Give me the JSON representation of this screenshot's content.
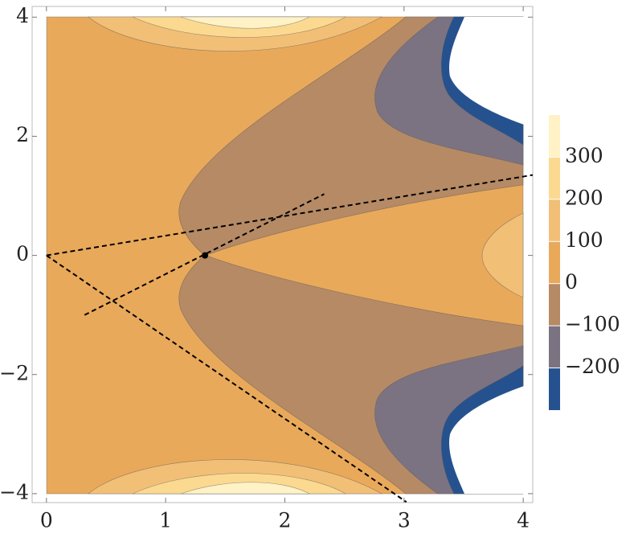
{
  "chart_data": {
    "type": "contour",
    "xlim": [
      -0.12,
      4.08
    ],
    "ylim": [
      -4.15,
      4.18
    ],
    "xticks": [
      0,
      1,
      2,
      3,
      4
    ],
    "yticks": [
      {
        "value": -4,
        "label": "−4"
      },
      {
        "value": -2,
        "label": "−2"
      },
      0,
      2,
      4
    ],
    "colorbar": {
      "lim": [
        -300,
        400
      ],
      "ticks": [
        {
          "value": -200,
          "label": "−200"
        },
        {
          "value": -100,
          "label": "−100"
        },
        0,
        100,
        200,
        300
      ],
      "colors": [
        "#25528f",
        "#7b7382",
        "#b58a65",
        "#e9a95b",
        "#f2bf77",
        "#fbd990",
        "#fef2c6"
      ]
    },
    "lines": [
      {
        "x": [
          0,
          4.08
        ],
        "y": [
          0,
          1.35
        ]
      },
      {
        "x": [
          0,
          3.02
        ],
        "y": [
          0,
          -4.14
        ]
      },
      {
        "x": [
          0.32,
          2.33
        ],
        "y": [
          -1.0,
          1.03
        ]
      }
    ],
    "points": {
      "x": [
        1.33
      ],
      "y": [
        0
      ]
    }
  }
}
